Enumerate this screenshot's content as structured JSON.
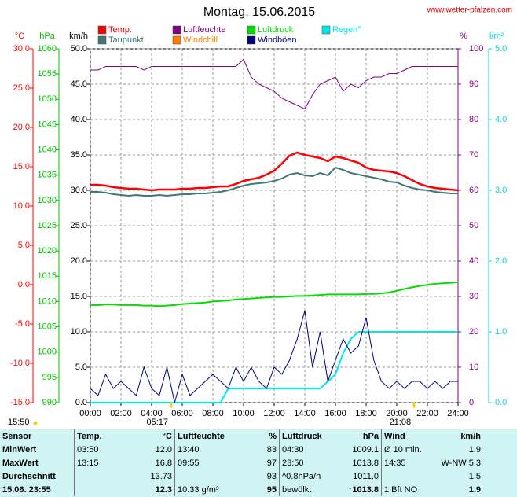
{
  "chart_data": {
    "type": "line",
    "title": "Montag, 15.06.2015",
    "source": "www.wetter-pfalzen.com",
    "x": [
      0,
      0.5,
      1,
      1.5,
      2,
      2.5,
      3,
      3.5,
      4,
      4.5,
      5,
      5.5,
      6,
      6.5,
      7,
      7.5,
      8,
      8.5,
      9,
      9.5,
      10,
      10.5,
      11,
      11.5,
      12,
      12.5,
      13,
      13.5,
      14,
      14.5,
      15,
      15.5,
      16,
      16.5,
      17,
      17.5,
      18,
      18.5,
      19,
      19.5,
      20,
      20.5,
      21,
      21.5,
      22,
      22.5,
      23,
      23.5,
      24
    ],
    "xlim": [
      0,
      24
    ],
    "xticks": [
      {
        "value": 0,
        "label": "00:00"
      },
      {
        "value": 2,
        "label": "02:00"
      },
      {
        "value": 4,
        "label": "04:00"
      },
      {
        "value": 6,
        "label": "06:00"
      },
      {
        "value": 8,
        "label": "08:00"
      },
      {
        "value": 10,
        "label": "10:00"
      },
      {
        "value": 12,
        "label": "12:00"
      },
      {
        "value": 14,
        "label": "14:00"
      },
      {
        "value": 16,
        "label": "16:00"
      },
      {
        "value": 18,
        "label": "18:00"
      },
      {
        "value": 20,
        "label": "20:00"
      },
      {
        "value": 22,
        "label": "22:00"
      },
      {
        "value": 24,
        "label": "24:00"
      }
    ],
    "ylabel": "km/h",
    "ylim": [
      0,
      50
    ],
    "yticks": [
      {
        "value": 0,
        "label": "0.0"
      },
      {
        "value": 5,
        "label": "5.0"
      },
      {
        "value": 10,
        "label": "10.0"
      },
      {
        "value": 15,
        "label": "15.0"
      },
      {
        "value": 20,
        "label": "20.0"
      },
      {
        "value": 25,
        "label": "25.0"
      },
      {
        "value": 30,
        "label": "30.0"
      },
      {
        "value": 35,
        "label": "35.0"
      },
      {
        "value": 40,
        "label": "40.0"
      },
      {
        "value": 45,
        "label": "45.0"
      },
      {
        "value": 50,
        "label": "50.0"
      }
    ],
    "grid": true,
    "axes": [
      {
        "label": "°C",
        "color": "#ff0000",
        "side": "left",
        "lim": [
          -15,
          30
        ],
        "ticks": [
          {
            "value": -15,
            "label": "-15.0"
          },
          {
            "value": -10,
            "label": "-10.0"
          },
          {
            "value": -5,
            "label": "-5.0"
          },
          {
            "value": 0,
            "label": "0.0"
          },
          {
            "value": 5,
            "label": "5.0"
          },
          {
            "value": 10,
            "label": "10.0"
          },
          {
            "value": 15,
            "label": "15.0"
          },
          {
            "value": 20,
            "label": "20.0"
          },
          {
            "value": 25,
            "label": "25.0"
          },
          {
            "value": 30,
            "label": "30.0"
          }
        ]
      },
      {
        "label": "hPa",
        "color": "#00c000",
        "side": "left",
        "lim": [
          990,
          1060
        ],
        "ticks": [
          990,
          995,
          1000,
          1005,
          1010,
          1015,
          1020,
          1025,
          1030,
          1035,
          1040,
          1045,
          1050,
          1055,
          1060
        ]
      },
      {
        "label": "%",
        "color": "#800080",
        "side": "right",
        "lim": [
          0,
          100
        ],
        "ticks": [
          0,
          10,
          20,
          30,
          40,
          50,
          60,
          70,
          80,
          90,
          100
        ]
      },
      {
        "label": "l/m²",
        "color": "#00d8d8",
        "side": "right",
        "lim": [
          0,
          5
        ],
        "ticks": [
          {
            "value": 0,
            "label": "0.0"
          },
          {
            "value": 1,
            "label": "1.0"
          },
          {
            "value": 2,
            "label": "2.0"
          },
          {
            "value": 3,
            "label": "3.0"
          },
          {
            "value": 4,
            "label": "4.0"
          },
          {
            "value": 5,
            "label": "5.0"
          }
        ]
      }
    ],
    "series": [
      {
        "name": "Temp.",
        "color": "#ff0000",
        "axis": 0,
        "width": 2.5,
        "values": [
          12.7,
          12.7,
          12.6,
          12.4,
          12.3,
          12.2,
          12.2,
          12.1,
          12.0,
          12.1,
          12.1,
          12.1,
          12.2,
          12.2,
          12.3,
          12.3,
          12.4,
          12.5,
          12.5,
          12.8,
          13.2,
          13.4,
          13.6,
          14.0,
          14.5,
          15.4,
          16.4,
          16.8,
          16.5,
          16.3,
          16.1,
          15.7,
          16.3,
          16.1,
          15.8,
          15.5,
          14.9,
          14.6,
          14.5,
          14.4,
          14.2,
          13.8,
          13.3,
          12.8,
          12.5,
          12.3,
          12.2,
          12.1,
          12.0
        ]
      },
      {
        "name": "Taupunkt",
        "color": "#407878",
        "axis": 0,
        "width": 2,
        "values": [
          11.8,
          11.8,
          11.7,
          11.5,
          11.4,
          11.3,
          11.4,
          11.3,
          11.3,
          11.4,
          11.3,
          11.4,
          11.5,
          11.5,
          11.6,
          11.6,
          11.7,
          11.8,
          12.0,
          12.3,
          12.6,
          12.8,
          12.9,
          13.0,
          13.2,
          13.5,
          14.0,
          14.2,
          13.9,
          13.8,
          14.2,
          13.9,
          14.9,
          14.6,
          14.2,
          14.0,
          13.8,
          13.6,
          13.4,
          13.1,
          13.0,
          12.6,
          12.3,
          12.1,
          12.0,
          11.8,
          11.7,
          11.6,
          11.6
        ]
      },
      {
        "name": "Luftfeuchte",
        "color": "#800080",
        "axis": 2,
        "width": 1,
        "values": [
          94,
          94,
          95,
          95,
          95,
          95,
          95,
          94,
          95,
          95,
          95,
          95,
          95,
          95,
          95,
          95,
          95,
          95,
          95,
          95,
          97,
          92,
          90,
          89,
          88,
          86,
          85,
          84,
          83,
          87,
          90,
          91,
          92,
          88,
          90,
          89,
          91,
          92,
          92,
          93,
          93,
          94,
          95,
          95,
          95,
          95,
          95,
          95,
          95
        ]
      },
      {
        "name": "Windchill",
        "color": "#ff8000"
      },
      {
        "name": "Luftdruck",
        "color": "#00e000",
        "axis": 1,
        "width": 2,
        "values": [
          1009.3,
          1009.3,
          1009.4,
          1009.4,
          1009.3,
          1009.3,
          1009.3,
          1009.2,
          1009.2,
          1009.1,
          1009.2,
          1009.3,
          1009.5,
          1009.6,
          1009.7,
          1009.8,
          1010.0,
          1010.1,
          1010.2,
          1010.4,
          1010.5,
          1010.6,
          1010.7,
          1010.8,
          1010.9,
          1010.9,
          1011.0,
          1011.1,
          1011.1,
          1011.2,
          1011.3,
          1011.4,
          1011.4,
          1011.4,
          1011.4,
          1011.4,
          1011.5,
          1011.5,
          1011.6,
          1011.8,
          1012.1,
          1012.5,
          1012.8,
          1013.1,
          1013.3,
          1013.5,
          1013.6,
          1013.7,
          1013.8
        ]
      },
      {
        "name": "Windböen",
        "color": "#000080",
        "width": 1,
        "values": [
          2,
          1,
          4,
          2,
          3,
          2,
          1,
          5,
          2,
          1,
          5,
          0,
          4,
          1,
          2,
          3,
          4,
          3,
          2,
          5,
          3,
          5,
          3,
          2,
          5,
          4,
          6,
          9,
          13,
          5,
          10,
          3,
          6,
          9,
          7,
          8,
          12,
          6,
          3,
          2,
          3,
          2,
          3,
          3,
          2,
          3,
          2,
          3,
          3
        ]
      },
      {
        "name": "Regen°",
        "color": "#00e8e8",
        "axis": 3,
        "width": 2,
        "values": [
          0,
          0,
          0,
          0,
          0,
          0,
          0,
          0,
          0,
          0,
          0,
          0,
          0,
          0,
          0,
          0,
          0,
          0,
          0.2,
          0.2,
          0.2,
          0.2,
          0.2,
          0.2,
          0.2,
          0.2,
          0.2,
          0.2,
          0.2,
          0.2,
          0.2,
          0.3,
          0.4,
          0.7,
          0.9,
          1.0,
          1.0,
          1.0,
          1.0,
          1.0,
          1.0,
          1.0,
          1.0,
          1.0,
          1.0,
          1.0,
          1.0,
          1.0,
          1.0
        ]
      }
    ],
    "daylength": "15:50",
    "sunrise": "05:17",
    "sunset": "21:08"
  },
  "table": {
    "header": [
      "Sensor",
      "Temp.",
      "°C",
      "Luftfeuchte",
      "%",
      "Luftdruck",
      "hPa",
      "Wind",
      "km/h"
    ],
    "rows": [
      [
        "MinWert",
        "03:50",
        "12.0",
        "13:40",
        "83",
        "04:30",
        "1009.1",
        "Ø 10 min.",
        "1.9"
      ],
      [
        "MaxWert",
        "13:15",
        "16.8",
        "09:55",
        "97",
        "23:50",
        "1013.8",
        "14:35",
        "W-NW 5.3"
      ],
      [
        "Durchschnitt",
        null,
        "13.73",
        null,
        "93",
        "^0.8hPa/h",
        "1011.0",
        null,
        "1.5"
      ],
      [
        "15.06. 23:55",
        null,
        "12.3",
        "10.33 g/m³",
        "95",
        "bewölkt",
        "↑1013.8",
        "1 Bft NO",
        "1.9"
      ]
    ]
  }
}
